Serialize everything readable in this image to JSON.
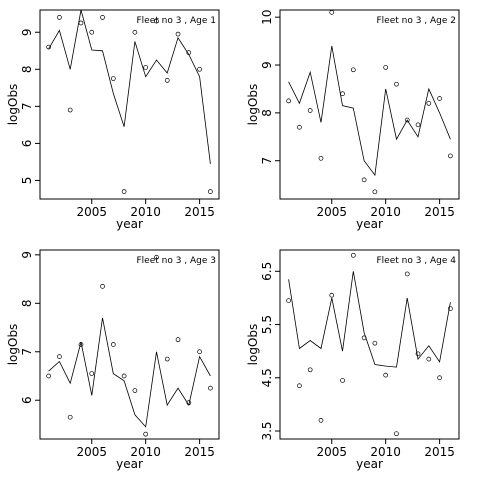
{
  "chart_data": [
    {
      "type": "line",
      "title": "Fleet no 3 , Age 1",
      "xlabel": "year",
      "ylabel": "logObs",
      "xlim": [
        2000.2,
        2016.8
      ],
      "ylim": [
        4.5,
        9.6
      ],
      "x_ticks": [
        2005,
        2010,
        2015
      ],
      "y_ticks": [
        5,
        6,
        7,
        8,
        9
      ],
      "grid": false,
      "series": [
        {
          "kind": "points",
          "x": [
            2001,
            2002,
            2003,
            2004,
            2005,
            2006,
            2007,
            2008,
            2009,
            2010,
            2011,
            2012,
            2013,
            2014,
            2015,
            2016
          ],
          "y": [
            8.6,
            9.4,
            6.9,
            9.25,
            9.0,
            9.4,
            7.75,
            4.7,
            9.0,
            8.05,
            9.3,
            7.7,
            8.95,
            8.45,
            8.0,
            4.7
          ]
        },
        {
          "kind": "line",
          "x": [
            2001,
            2002,
            2003,
            2004,
            2005,
            2006,
            2007,
            2008,
            2009,
            2010,
            2011,
            2012,
            2013,
            2014,
            2015,
            2016
          ],
          "y": [
            8.55,
            9.05,
            8.0,
            9.6,
            8.52,
            8.5,
            7.35,
            6.45,
            8.75,
            7.8,
            8.25,
            7.9,
            8.85,
            8.4,
            7.8,
            5.45
          ]
        }
      ]
    },
    {
      "type": "line",
      "title": "Fleet no 3 , Age 2",
      "xlabel": "year",
      "ylabel": "logObs",
      "xlim": [
        2000.2,
        2016.8
      ],
      "ylim": [
        6.2,
        10.15
      ],
      "x_ticks": [
        2005,
        2010,
        2015
      ],
      "y_ticks": [
        7,
        8,
        9,
        10
      ],
      "grid": false,
      "series": [
        {
          "kind": "points",
          "x": [
            2001,
            2002,
            2003,
            2004,
            2005,
            2006,
            2007,
            2008,
            2009,
            2010,
            2011,
            2012,
            2013,
            2014,
            2015,
            2016
          ],
          "y": [
            8.25,
            7.7,
            8.05,
            7.05,
            10.1,
            8.4,
            8.9,
            6.6,
            6.35,
            8.95,
            8.6,
            7.85,
            7.75,
            8.2,
            8.3,
            7.1
          ]
        },
        {
          "kind": "line",
          "x": [
            2001,
            2002,
            2003,
            2004,
            2005,
            2006,
            2007,
            2008,
            2009,
            2010,
            2011,
            2012,
            2013,
            2014,
            2015,
            2016
          ],
          "y": [
            8.65,
            8.2,
            8.85,
            7.8,
            9.4,
            8.15,
            8.1,
            7.0,
            6.7,
            8.5,
            7.45,
            7.85,
            7.5,
            8.5,
            8.0,
            7.45
          ]
        }
      ]
    },
    {
      "type": "line",
      "title": "Fleet no 3 , Age 3",
      "xlabel": "year",
      "ylabel": "logObs",
      "xlim": [
        2000.2,
        2016.8
      ],
      "ylim": [
        5.2,
        9.1
      ],
      "x_ticks": [
        2005,
        2010,
        2015
      ],
      "y_ticks": [
        6,
        7,
        8,
        9
      ],
      "grid": false,
      "series": [
        {
          "kind": "points",
          "x": [
            2001,
            2002,
            2003,
            2004,
            2005,
            2006,
            2007,
            2008,
            2009,
            2010,
            2011,
            2012,
            2013,
            2014,
            2015,
            2016
          ],
          "y": [
            6.5,
            6.9,
            5.65,
            7.15,
            6.55,
            8.35,
            7.15,
            6.5,
            6.2,
            5.3,
            8.95,
            6.85,
            7.25,
            5.95,
            7.0,
            6.25
          ]
        },
        {
          "kind": "line",
          "x": [
            2001,
            2002,
            2003,
            2004,
            2005,
            2006,
            2007,
            2008,
            2009,
            2010,
            2011,
            2012,
            2013,
            2014,
            2015,
            2016
          ],
          "y": [
            6.6,
            6.8,
            6.35,
            7.2,
            6.1,
            7.7,
            6.55,
            6.4,
            5.7,
            5.45,
            7.0,
            5.9,
            6.25,
            5.9,
            6.9,
            6.5
          ]
        }
      ]
    },
    {
      "type": "line",
      "title": "Fleet no 3 , Age 4",
      "xlabel": "year",
      "ylabel": "logObs",
      "xlim": [
        2000.2,
        2016.8
      ],
      "ylim": [
        3.35,
        6.9
      ],
      "x_ticks": [
        2005,
        2010,
        2015
      ],
      "y_ticks": [
        3.5,
        4.5,
        5.5,
        6.5
      ],
      "grid": false,
      "series": [
        {
          "kind": "points",
          "x": [
            2001,
            2002,
            2003,
            2004,
            2005,
            2006,
            2007,
            2008,
            2009,
            2010,
            2011,
            2012,
            2013,
            2014,
            2015,
            2016
          ],
          "y": [
            5.95,
            4.35,
            4.65,
            3.7,
            6.05,
            4.45,
            6.8,
            5.25,
            5.15,
            4.55,
            3.45,
            6.45,
            4.95,
            4.85,
            4.5,
            5.8
          ]
        },
        {
          "kind": "line",
          "x": [
            2001,
            2002,
            2003,
            2004,
            2005,
            2006,
            2007,
            2008,
            2009,
            2010,
            2011,
            2012,
            2013,
            2014,
            2015,
            2016
          ],
          "y": [
            6.35,
            5.05,
            5.2,
            5.05,
            6.0,
            5.0,
            6.5,
            5.35,
            4.75,
            4.72,
            4.7,
            6.0,
            4.85,
            5.1,
            4.8,
            5.92
          ]
        }
      ]
    }
  ]
}
